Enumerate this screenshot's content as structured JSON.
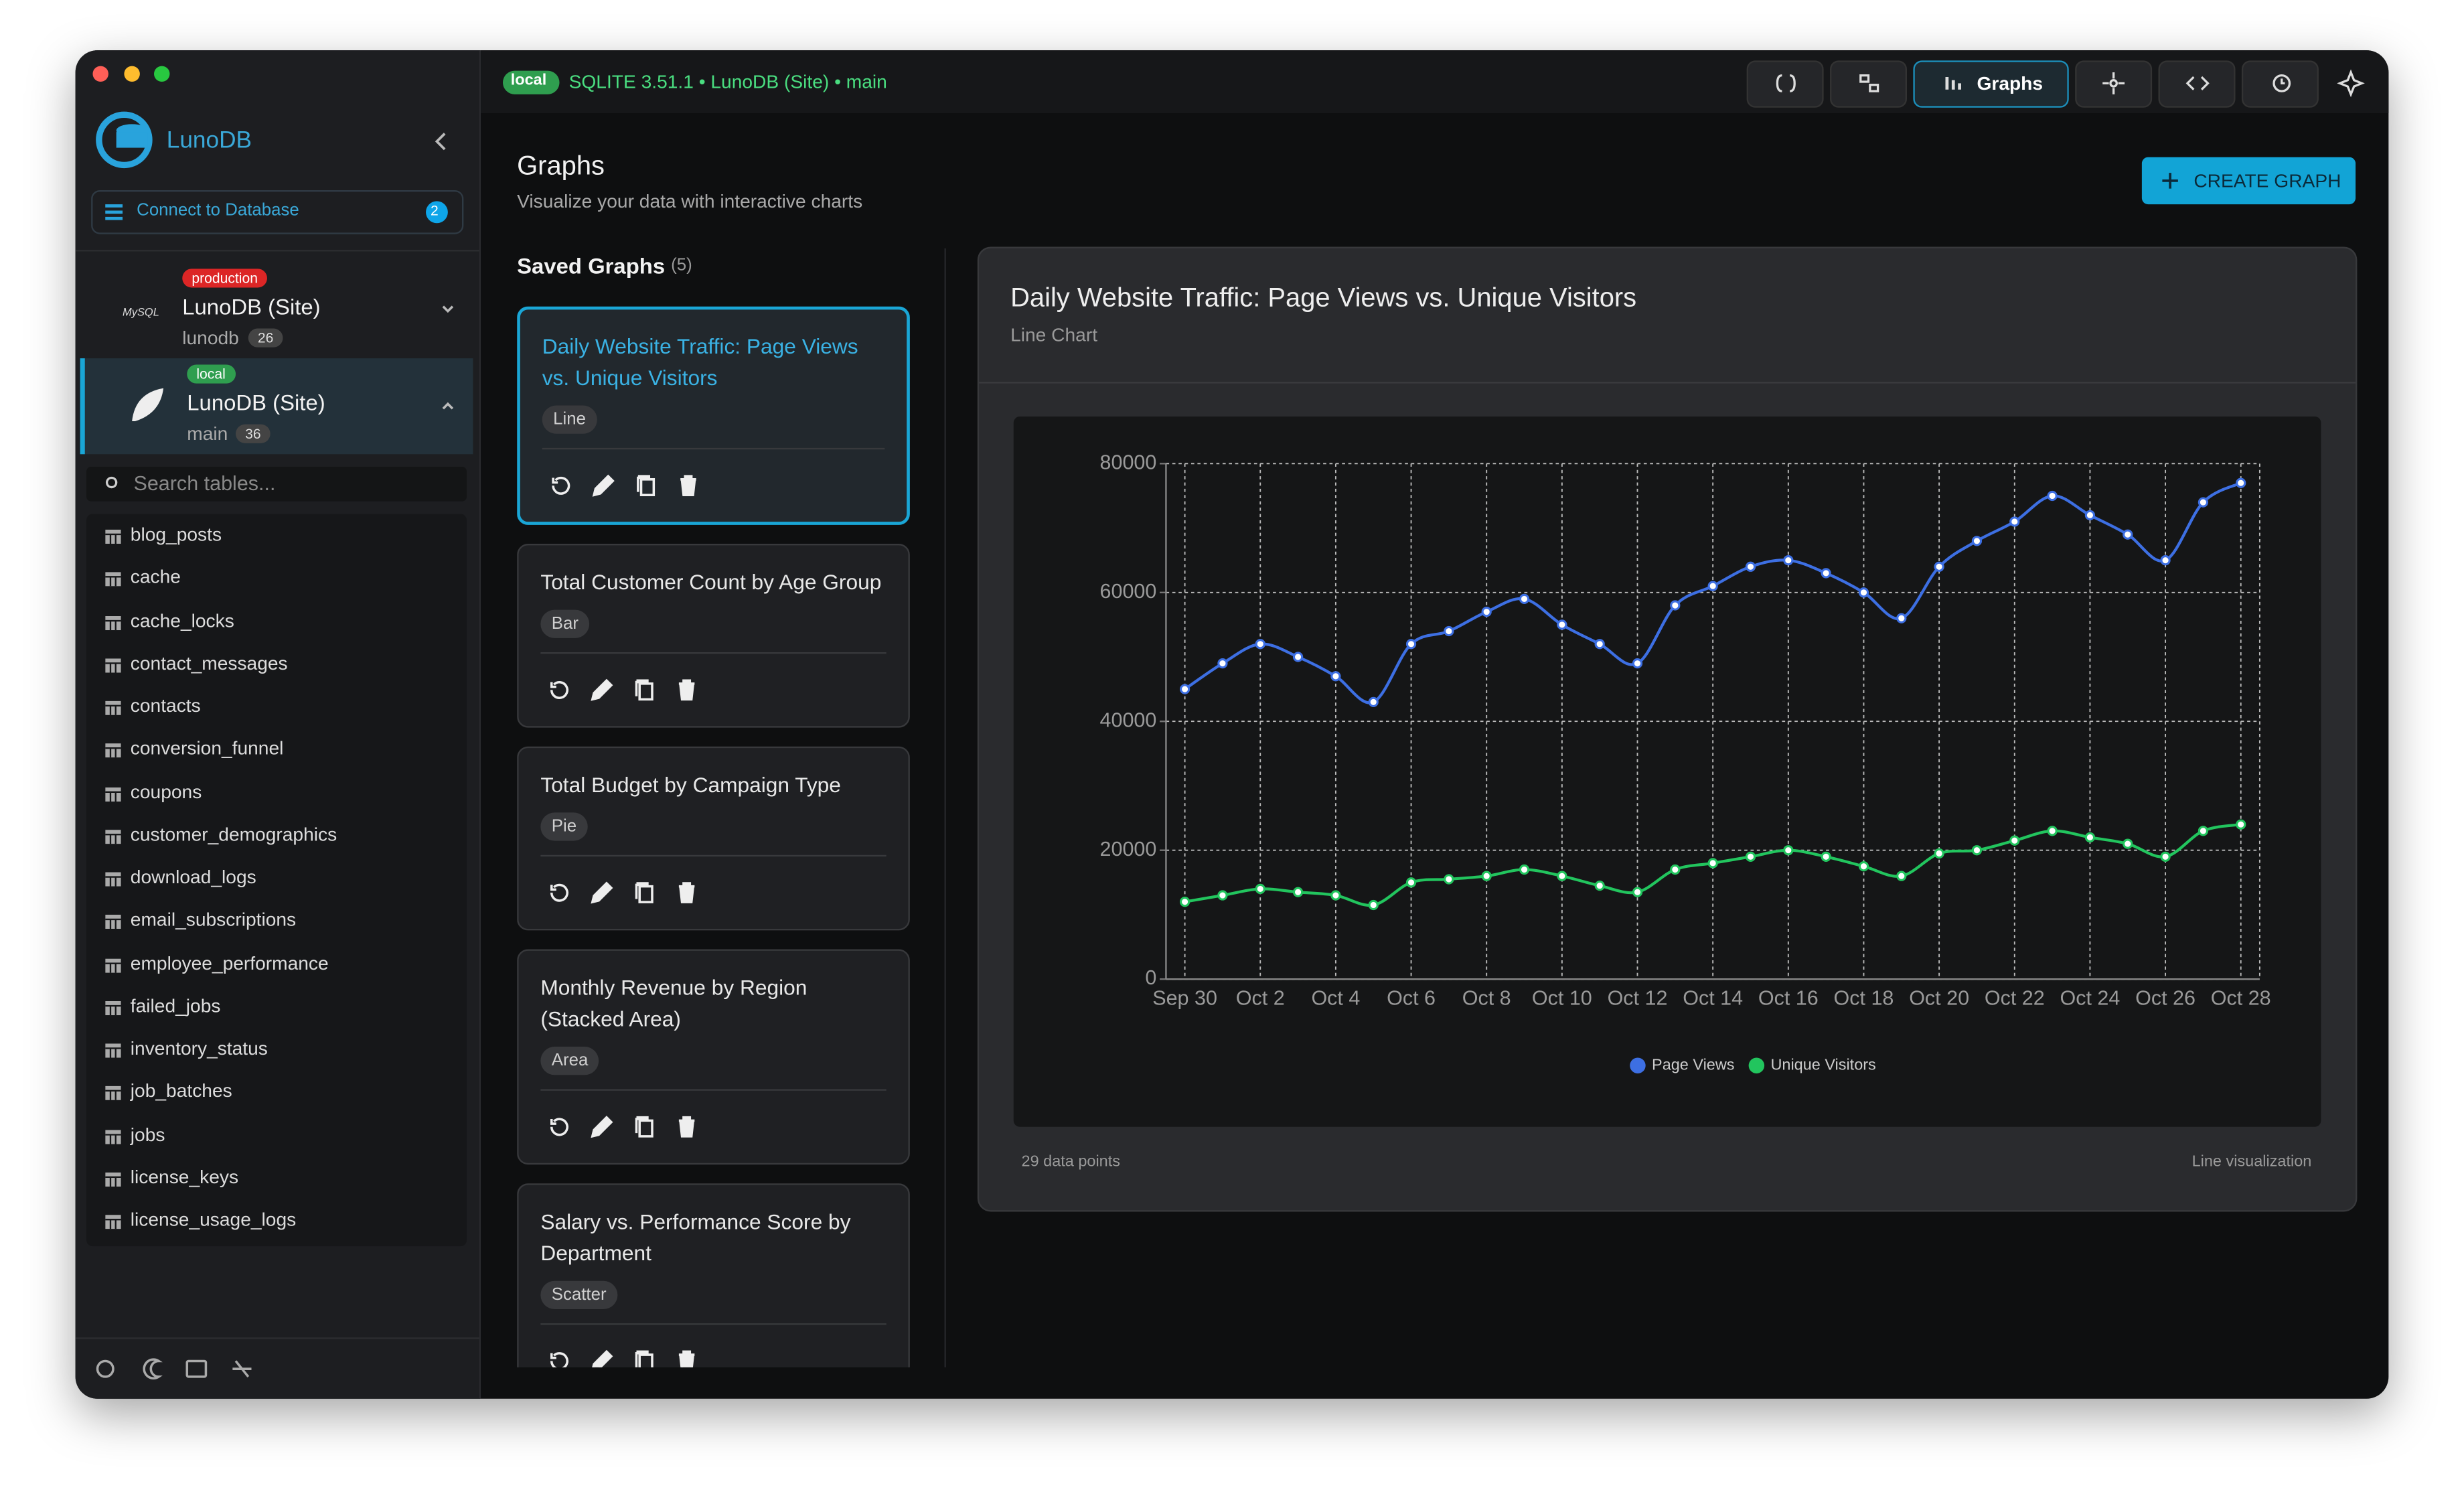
{
  "sidebar": {
    "brand": "LunoDB",
    "connect": "Connect to Database",
    "connect_count": 2,
    "connections": [
      {
        "badge": "production",
        "engine": "MySQL",
        "name": "LunoDB (Site)",
        "db": "lunodb",
        "count": 26
      },
      {
        "badge": "local",
        "name": "LunoDB (Site)",
        "db": "main",
        "count": 36
      }
    ],
    "search_placeholder": "Search tables...",
    "tables": [
      "blog_posts",
      "cache",
      "cache_locks",
      "contact_messages",
      "contacts",
      "conversion_funnel",
      "coupons",
      "customer_demographics",
      "download_logs",
      "email_subscriptions",
      "employee_performance",
      "failed_jobs",
      "inventory_status",
      "job_batches",
      "jobs",
      "license_keys",
      "license_usage_logs"
    ]
  },
  "topbar": {
    "badge": "local",
    "status": "SQLITE 3.51.1 • LunoDB (Site) • main",
    "active_tab": "Graphs"
  },
  "header": {
    "title": "Graphs",
    "subtitle": "Visualize your data with interactive charts",
    "button": "CREATE GRAPH"
  },
  "saved": {
    "title": "Saved Graphs",
    "count": "(5)",
    "items": [
      {
        "title": "Daily Website Traffic: Page Views vs. Unique Visitors",
        "type": "Line"
      },
      {
        "title": "Total Customer Count by Age Group",
        "type": "Bar"
      },
      {
        "title": "Total Budget by Campaign Type",
        "type": "Pie"
      },
      {
        "title": "Monthly Revenue by Region (Stacked Area)",
        "type": "Area"
      },
      {
        "title": "Salary vs. Performance Score by Department",
        "type": "Scatter"
      }
    ]
  },
  "panel": {
    "title": "Daily Website Traffic: Page Views vs. Unique Visitors",
    "subtitle": "Line Chart",
    "footer_left": "29 data points",
    "footer_right": "Line visualization"
  },
  "chart_data": {
    "type": "line",
    "categories": [
      "Sep 30",
      null,
      "Oct 2",
      null,
      "Oct 4",
      null,
      "Oct 6",
      null,
      "Oct 8",
      null,
      "Oct 10",
      null,
      "Oct 12",
      null,
      "Oct 14",
      null,
      "Oct 16",
      null,
      "Oct 18",
      null,
      "Oct 20",
      null,
      "Oct 22",
      null,
      "Oct 24",
      null,
      "Oct 26",
      null,
      "Oct 28"
    ],
    "series": [
      {
        "name": "Page Views",
        "color": "#3d6fe3",
        "values": [
          45000,
          49000,
          52000,
          50000,
          47000,
          43000,
          52000,
          54000,
          57000,
          59000,
          55000,
          52000,
          49000,
          58000,
          61000,
          64000,
          65000,
          63000,
          60000,
          56000,
          64000,
          68000,
          71000,
          75000,
          72000,
          69000,
          65000,
          74000,
          77000
        ]
      },
      {
        "name": "Unique Visitors",
        "color": "#22c55e",
        "values": [
          12000,
          13000,
          14000,
          13500,
          13000,
          11500,
          15000,
          15500,
          16000,
          17000,
          16000,
          14500,
          13500,
          17000,
          18000,
          19000,
          20000,
          19000,
          17500,
          16000,
          19500,
          20000,
          21500,
          23000,
          22000,
          21000,
          19000,
          23000,
          24000
        ]
      }
    ],
    "ylim": [
      0,
      80000
    ],
    "yticks": [
      0,
      20000,
      40000,
      60000,
      80000
    ],
    "grid": true,
    "legend": "bottom"
  }
}
